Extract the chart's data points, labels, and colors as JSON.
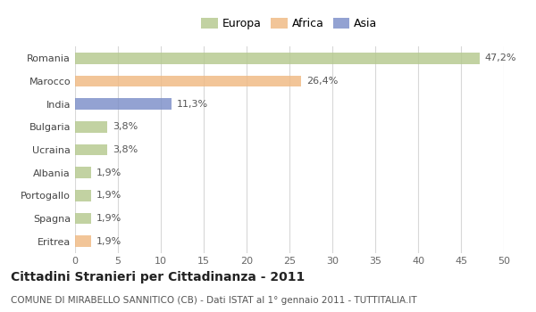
{
  "categories": [
    "Romania",
    "Marocco",
    "India",
    "Bulgaria",
    "Ucraina",
    "Albania",
    "Portogallo",
    "Spagna",
    "Eritrea"
  ],
  "values": [
    47.2,
    26.4,
    11.3,
    3.8,
    3.8,
    1.9,
    1.9,
    1.9,
    1.9
  ],
  "labels": [
    "47,2%",
    "26,4%",
    "11,3%",
    "3,8%",
    "3,8%",
    "1,9%",
    "1,9%",
    "1,9%",
    "1,9%"
  ],
  "colors": [
    "#b5c98e",
    "#f0b982",
    "#7b8ec8",
    "#b5c98e",
    "#b5c98e",
    "#b5c98e",
    "#b5c98e",
    "#b5c98e",
    "#f0b982"
  ],
  "legend_labels": [
    "Europa",
    "Africa",
    "Asia"
  ],
  "legend_colors": [
    "#b5c98e",
    "#f0b982",
    "#7b8ec8"
  ],
  "xlim": [
    0,
    50
  ],
  "xticks": [
    0,
    5,
    10,
    15,
    20,
    25,
    30,
    35,
    40,
    45,
    50
  ],
  "title": "Cittadini Stranieri per Cittadinanza - 2011",
  "subtitle": "COMUNE DI MIRABELLO SANNITICO (CB) - Dati ISTAT al 1° gennaio 2011 - TUTTITALIA.IT",
  "background_color": "#ffffff",
  "grid_color": "#d8d8d8",
  "bar_height": 0.5,
  "label_fontsize": 8,
  "tick_fontsize": 8,
  "ytick_fontsize": 8,
  "title_fontsize": 10,
  "subtitle_fontsize": 7.5
}
